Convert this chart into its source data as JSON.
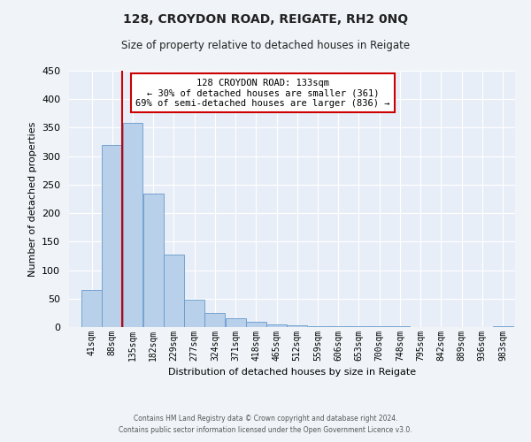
{
  "title": "128, CROYDON ROAD, REIGATE, RH2 0NQ",
  "subtitle": "Size of property relative to detached houses in Reigate",
  "xlabel": "Distribution of detached houses by size in Reigate",
  "ylabel": "Number of detached properties",
  "footer_line1": "Contains HM Land Registry data © Crown copyright and database right 2024.",
  "footer_line2": "Contains public sector information licensed under the Open Government Licence v3.0.",
  "bin_labels": [
    "41sqm",
    "88sqm",
    "135sqm",
    "182sqm",
    "229sqm",
    "277sqm",
    "324sqm",
    "371sqm",
    "418sqm",
    "465sqm",
    "512sqm",
    "559sqm",
    "606sqm",
    "653sqm",
    "700sqm",
    "748sqm",
    "795sqm",
    "842sqm",
    "889sqm",
    "936sqm",
    "983sqm"
  ],
  "bar_heights": [
    65,
    320,
    358,
    235,
    127,
    48,
    25,
    15,
    10,
    5,
    3,
    2,
    2,
    1,
    1,
    1,
    0,
    0,
    0,
    0,
    2
  ],
  "bar_color": "#b8d0ea",
  "bar_edge_color": "#6699cc",
  "background_color": "#e8eef7",
  "grid_color": "#ffffff",
  "marker_line_color": "#cc0000",
  "annotation_title": "128 CROYDON ROAD: 133sqm",
  "annotation_line1": "← 30% of detached houses are smaller (361)",
  "annotation_line2": "69% of semi-detached houses are larger (836) →",
  "annotation_box_color": "#ffffff",
  "annotation_box_edge_color": "#cc0000",
  "ylim": [
    0,
    450
  ],
  "bin_width": 47
}
